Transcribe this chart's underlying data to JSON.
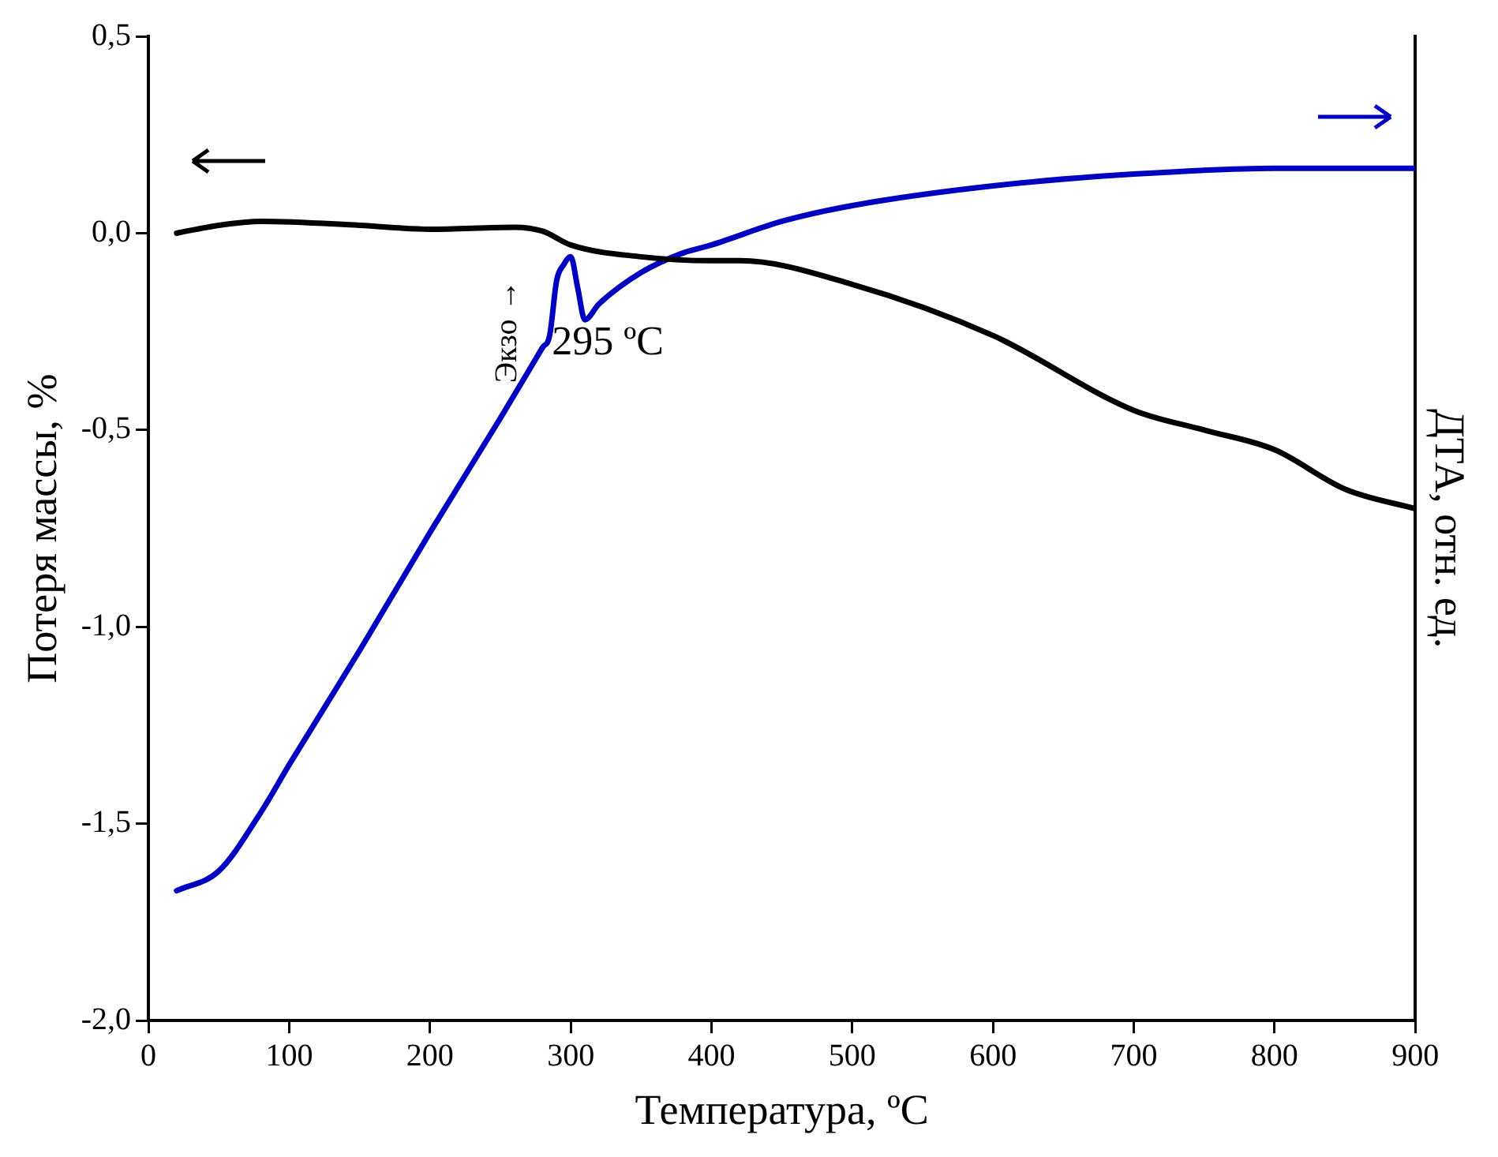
{
  "chart_data": {
    "type": "line",
    "xlabel": "Температура, ºC",
    "ylabel": "Потеря массы, %",
    "y2label": "ДТА, отн. ед.",
    "xlim": [
      0,
      900
    ],
    "xticks": [
      0,
      100,
      200,
      300,
      400,
      500,
      600,
      700,
      800,
      900
    ],
    "ylim": [
      -2,
      0.5
    ],
    "yticks": [
      {
        "value": -2,
        "label": "-2,0"
      },
      {
        "value": -1.5,
        "label": "-1,5"
      },
      {
        "value": -1,
        "label": "-1,0"
      },
      {
        "value": -0.5,
        "label": "-0,5"
      },
      {
        "value": 0,
        "label": "0,0"
      },
      {
        "value": 0.5,
        "label": "0,5"
      }
    ],
    "marker": "none",
    "line_style": "solid",
    "series": [
      {
        "color": "#000000",
        "x": [
          20,
          50,
          80,
          150,
          200,
          260,
          280,
          300,
          350,
          400,
          420,
          500,
          600,
          700,
          750,
          800,
          850,
          900
        ],
        "values": [
          0,
          0.02,
          0.03,
          0.02,
          0.01,
          0.015,
          0.005,
          -0.03,
          -0.06,
          -0.07,
          -0.07,
          -0.13,
          -0.26,
          -0.45,
          -0.5,
          -0.55,
          -0.65,
          -0.7
        ]
      },
      {
        "color": "#0000c0",
        "x": [
          20,
          50,
          80,
          100,
          150,
          200,
          250,
          280,
          285,
          290,
          295,
          300,
          305,
          310,
          320,
          350,
          380,
          400,
          450,
          500,
          600,
          700,
          800,
          900
        ],
        "values": [
          -1.67,
          -1.62,
          -1.47,
          -1.35,
          -1.06,
          -0.76,
          -0.47,
          -0.29,
          -0.26,
          -0.12,
          -0.08,
          -0.06,
          -0.14,
          -0.22,
          -0.18,
          -0.1,
          -0.05,
          -0.03,
          0.03,
          0.07,
          0.12,
          0.15,
          0.165,
          0.165
        ]
      }
    ],
    "annotations": [
      {
        "text": "295 ºC",
        "x": 300,
        "y": -0.06
      },
      "Экзо →"
    ]
  }
}
